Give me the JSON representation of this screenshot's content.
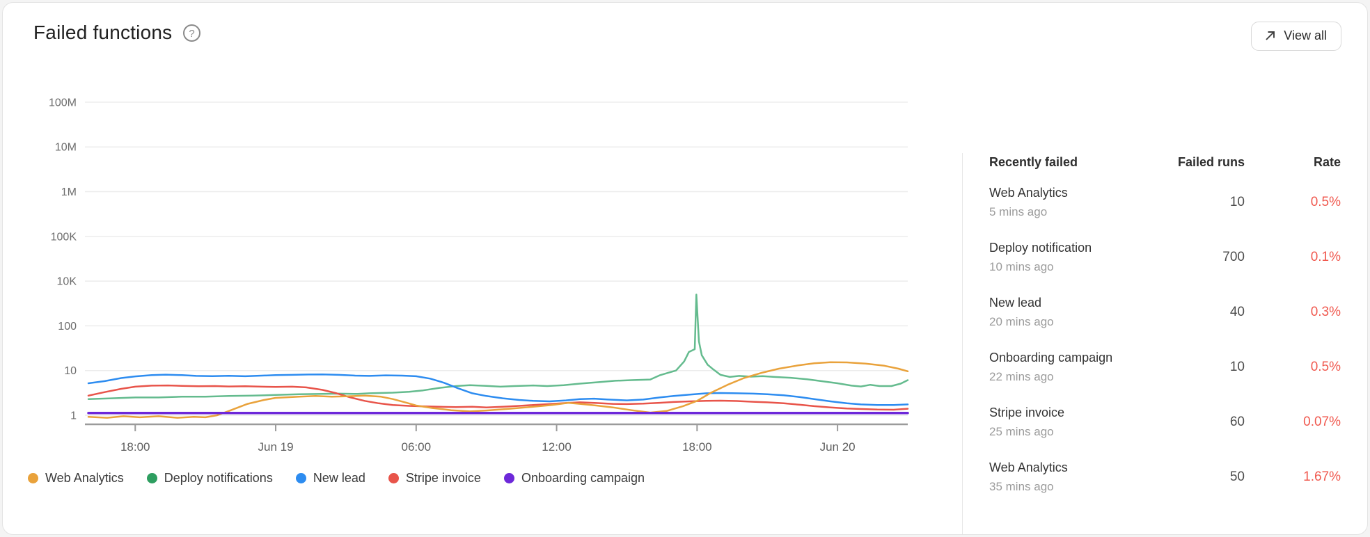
{
  "header": {
    "title": "Failed functions",
    "help_icon": "question-mark-circle",
    "view_all_label": "View all",
    "view_all_icon": "arrow-up-right"
  },
  "colors": {
    "web_analytics": "#E9A23B",
    "deploy_notifications_dot": "#2E9E60",
    "deploy_notifications_line": "#64BB8E",
    "new_lead": "#2D8CF0",
    "stripe_invoice": "#E8544A",
    "onboarding_campaign": "#6D28D9",
    "rate_text": "#F0594F",
    "gridline": "#ececec",
    "axis_line": "#9b9b9b",
    "axis_label": "#5f5f5f",
    "y_label": "#6d6d6d"
  },
  "chart_data": {
    "type": "line",
    "title": "Failed functions over time (log scale)",
    "y_axis": {
      "tick_labels_top_to_bottom": [
        "100M",
        "10M",
        "1M",
        "100K",
        "10K",
        "100",
        "10",
        "1"
      ],
      "scale": "log-compressed"
    },
    "x_axis": {
      "t_range": [
        0,
        35
      ],
      "ticks": [
        {
          "t": 2,
          "label": "18:00"
        },
        {
          "t": 8,
          "label": "Jun 19"
        },
        {
          "t": 14,
          "label": "06:00"
        },
        {
          "t": 20,
          "label": "12:00"
        },
        {
          "t": 26,
          "label": "18:00"
        },
        {
          "t": 32,
          "label": "Jun 20"
        }
      ]
    },
    "series": [
      {
        "name": "Deploy notifications",
        "color": "#64BB8E",
        "width": 2.5,
        "points": [
          [
            0,
            2.3
          ],
          [
            1,
            2.4
          ],
          [
            2,
            2.5
          ],
          [
            3,
            2.5
          ],
          [
            4,
            2.6
          ],
          [
            5,
            2.6
          ],
          [
            6,
            2.7
          ],
          [
            7,
            2.75
          ],
          [
            8,
            2.85
          ],
          [
            9,
            2.95
          ],
          [
            10,
            3.0
          ],
          [
            10.7,
            3.05
          ],
          [
            11.5,
            3.0
          ],
          [
            12,
            3.1
          ],
          [
            13,
            3.2
          ],
          [
            13.7,
            3.35
          ],
          [
            14.3,
            3.6
          ],
          [
            15,
            4.1
          ],
          [
            15.7,
            4.5
          ],
          [
            16.3,
            4.7
          ],
          [
            17,
            4.55
          ],
          [
            17.6,
            4.35
          ],
          [
            18.2,
            4.5
          ],
          [
            19,
            4.65
          ],
          [
            19.6,
            4.5
          ],
          [
            20.3,
            4.7
          ],
          [
            21,
            5.1
          ],
          [
            21.8,
            5.5
          ],
          [
            22.5,
            5.9
          ],
          [
            23.2,
            6.1
          ],
          [
            24,
            6.3
          ],
          [
            24.4,
            7.8
          ],
          [
            24.8,
            9
          ],
          [
            25.1,
            10
          ],
          [
            25.45,
            16
          ],
          [
            25.65,
            26
          ],
          [
            25.9,
            30
          ],
          [
            25.97,
            2500
          ],
          [
            26.08,
            45
          ],
          [
            26.2,
            22
          ],
          [
            26.45,
            13.5
          ],
          [
            26.7,
            10.5
          ],
          [
            27,
            8
          ],
          [
            27.4,
            7.2
          ],
          [
            27.8,
            7.6
          ],
          [
            28.3,
            7.3
          ],
          [
            28.8,
            7.5
          ],
          [
            29.3,
            7.2
          ],
          [
            30,
            6.9
          ],
          [
            30.7,
            6.4
          ],
          [
            31.3,
            5.8
          ],
          [
            32,
            5.2
          ],
          [
            32.6,
            4.6
          ],
          [
            33,
            4.4
          ],
          [
            33.4,
            4.8
          ],
          [
            33.8,
            4.5
          ],
          [
            34.3,
            4.5
          ],
          [
            34.7,
            5.1
          ],
          [
            35,
            6.1
          ]
        ]
      },
      {
        "name": "Stripe invoice",
        "color": "#E8544A",
        "width": 2.5,
        "points": [
          [
            0,
            2.75
          ],
          [
            0.7,
            3.3
          ],
          [
            1.4,
            3.9
          ],
          [
            2,
            4.35
          ],
          [
            2.7,
            4.6
          ],
          [
            3.4,
            4.65
          ],
          [
            4,
            4.55
          ],
          [
            4.7,
            4.45
          ],
          [
            5.4,
            4.5
          ],
          [
            6,
            4.4
          ],
          [
            6.7,
            4.45
          ],
          [
            7.4,
            4.35
          ],
          [
            8,
            4.3
          ],
          [
            8.7,
            4.35
          ],
          [
            9.3,
            4.2
          ],
          [
            10,
            3.7
          ],
          [
            10.6,
            3.1
          ],
          [
            11.2,
            2.5
          ],
          [
            11.8,
            2.1
          ],
          [
            12.4,
            1.85
          ],
          [
            13,
            1.7
          ],
          [
            13.7,
            1.62
          ],
          [
            14.4,
            1.58
          ],
          [
            15,
            1.55
          ],
          [
            15.7,
            1.52
          ],
          [
            16.4,
            1.55
          ],
          [
            17,
            1.5
          ],
          [
            17.7,
            1.55
          ],
          [
            18.4,
            1.62
          ],
          [
            19,
            1.7
          ],
          [
            19.7,
            1.78
          ],
          [
            20.4,
            1.88
          ],
          [
            21,
            1.95
          ],
          [
            21.7,
            1.88
          ],
          [
            22.4,
            1.8
          ],
          [
            23,
            1.78
          ],
          [
            23.7,
            1.82
          ],
          [
            24.4,
            1.9
          ],
          [
            25,
            1.98
          ],
          [
            25.7,
            2.05
          ],
          [
            26.4,
            2.1
          ],
          [
            27,
            2.12
          ],
          [
            27.7,
            2.08
          ],
          [
            28.4,
            2.0
          ],
          [
            29,
            1.95
          ],
          [
            29.7,
            1.85
          ],
          [
            30.4,
            1.72
          ],
          [
            31,
            1.6
          ],
          [
            31.7,
            1.5
          ],
          [
            32.4,
            1.42
          ],
          [
            33,
            1.38
          ],
          [
            33.7,
            1.34
          ],
          [
            34.4,
            1.33
          ],
          [
            35,
            1.4
          ]
        ]
      },
      {
        "name": "New lead",
        "color": "#2D8CF0",
        "width": 2.5,
        "points": [
          [
            0,
            5.2
          ],
          [
            0.7,
            5.8
          ],
          [
            1.4,
            6.8
          ],
          [
            2,
            7.4
          ],
          [
            2.7,
            7.9
          ],
          [
            3.3,
            8.1
          ],
          [
            4,
            7.9
          ],
          [
            4.6,
            7.6
          ],
          [
            5.3,
            7.5
          ],
          [
            6,
            7.65
          ],
          [
            6.7,
            7.45
          ],
          [
            7.4,
            7.7
          ],
          [
            8,
            7.9
          ],
          [
            8.7,
            8.0
          ],
          [
            9.4,
            8.15
          ],
          [
            10,
            8.2
          ],
          [
            10.7,
            8.0
          ],
          [
            11.4,
            7.7
          ],
          [
            12,
            7.6
          ],
          [
            12.7,
            7.8
          ],
          [
            13.4,
            7.7
          ],
          [
            14,
            7.45
          ],
          [
            14.6,
            6.6
          ],
          [
            15.2,
            5.3
          ],
          [
            15.8,
            4.0
          ],
          [
            16.4,
            3.1
          ],
          [
            17,
            2.7
          ],
          [
            17.7,
            2.4
          ],
          [
            18.4,
            2.2
          ],
          [
            19,
            2.1
          ],
          [
            19.7,
            2.05
          ],
          [
            20.4,
            2.15
          ],
          [
            21,
            2.3
          ],
          [
            21.6,
            2.35
          ],
          [
            22.2,
            2.25
          ],
          [
            23,
            2.15
          ],
          [
            23.7,
            2.25
          ],
          [
            24.4,
            2.5
          ],
          [
            25,
            2.7
          ],
          [
            25.7,
            2.9
          ],
          [
            26.4,
            3.1
          ],
          [
            27,
            3.15
          ],
          [
            27.7,
            3.1
          ],
          [
            28.4,
            3.05
          ],
          [
            29,
            2.95
          ],
          [
            29.7,
            2.8
          ],
          [
            30.4,
            2.55
          ],
          [
            31,
            2.3
          ],
          [
            31.7,
            2.05
          ],
          [
            32.4,
            1.85
          ],
          [
            33,
            1.75
          ],
          [
            33.7,
            1.7
          ],
          [
            34.4,
            1.7
          ],
          [
            35,
            1.75
          ]
        ]
      },
      {
        "name": "Web Analytics",
        "color": "#E9A23B",
        "width": 2.5,
        "points": [
          [
            0,
            0.92
          ],
          [
            0.8,
            0.88
          ],
          [
            1.5,
            0.95
          ],
          [
            2.2,
            0.9
          ],
          [
            3,
            0.95
          ],
          [
            3.8,
            0.88
          ],
          [
            4.5,
            0.92
          ],
          [
            5,
            0.9
          ],
          [
            5.5,
            1.0
          ],
          [
            6,
            1.25
          ],
          [
            6.8,
            1.8
          ],
          [
            7.5,
            2.2
          ],
          [
            8,
            2.45
          ],
          [
            9,
            2.6
          ],
          [
            9.7,
            2.7
          ],
          [
            10.4,
            2.6
          ],
          [
            11,
            2.65
          ],
          [
            11.8,
            2.75
          ],
          [
            12.5,
            2.6
          ],
          [
            13,
            2.3
          ],
          [
            13.6,
            1.9
          ],
          [
            14,
            1.65
          ],
          [
            14.7,
            1.45
          ],
          [
            15.5,
            1.3
          ],
          [
            16.3,
            1.22
          ],
          [
            17,
            1.28
          ],
          [
            18,
            1.4
          ],
          [
            19,
            1.55
          ],
          [
            19.8,
            1.7
          ],
          [
            20.5,
            1.9
          ],
          [
            21,
            1.8
          ],
          [
            21.7,
            1.65
          ],
          [
            22.4,
            1.5
          ],
          [
            23.2,
            1.3
          ],
          [
            24,
            1.15
          ],
          [
            24.7,
            1.25
          ],
          [
            25.4,
            1.6
          ],
          [
            26,
            2.1
          ],
          [
            26.6,
            3.2
          ],
          [
            27.3,
            4.8
          ],
          [
            28,
            6.8
          ],
          [
            28.8,
            9
          ],
          [
            29.5,
            11
          ],
          [
            30.3,
            13
          ],
          [
            31,
            14.5
          ],
          [
            31.7,
            15.3
          ],
          [
            32.4,
            15.2
          ],
          [
            33.2,
            14.3
          ],
          [
            34,
            12.8
          ],
          [
            34.6,
            11
          ],
          [
            35,
            9.6
          ]
        ]
      },
      {
        "name": "Onboarding campaign",
        "color": "#6D28D9",
        "width": 3.5,
        "points": [
          [
            0,
            1.12
          ],
          [
            35,
            1.12
          ]
        ]
      }
    ]
  },
  "legend": {
    "items": [
      {
        "label": "Web Analytics",
        "color": "#E9A23B"
      },
      {
        "label": "Deploy notifications",
        "color": "#2E9E60"
      },
      {
        "label": "New lead",
        "color": "#2D8CF0"
      },
      {
        "label": "Stripe invoice",
        "color": "#E8544A"
      },
      {
        "label": "Onboarding campaign",
        "color": "#6D28D9"
      }
    ]
  },
  "table": {
    "headers": {
      "name": "Recently failed",
      "runs": "Failed runs",
      "rate": "Rate"
    },
    "rate_color": "#F0594F",
    "rows": [
      {
        "name": "Web Analytics",
        "time": "5 mins ago",
        "runs": "10",
        "rate": "0.5%"
      },
      {
        "name": "Deploy notification",
        "time": "10 mins ago",
        "runs": "700",
        "rate": "0.1%"
      },
      {
        "name": "New lead",
        "time": "20 mins ago",
        "runs": "40",
        "rate": "0.3%"
      },
      {
        "name": "Onboarding campaign",
        "time": "22 mins ago",
        "runs": "10",
        "rate": "0.5%"
      },
      {
        "name": "Stripe invoice",
        "time": "25 mins ago",
        "runs": "60",
        "rate": "0.07%"
      },
      {
        "name": "Web Analytics",
        "time": "35 mins ago",
        "runs": "50",
        "rate": "1.67%"
      }
    ]
  }
}
